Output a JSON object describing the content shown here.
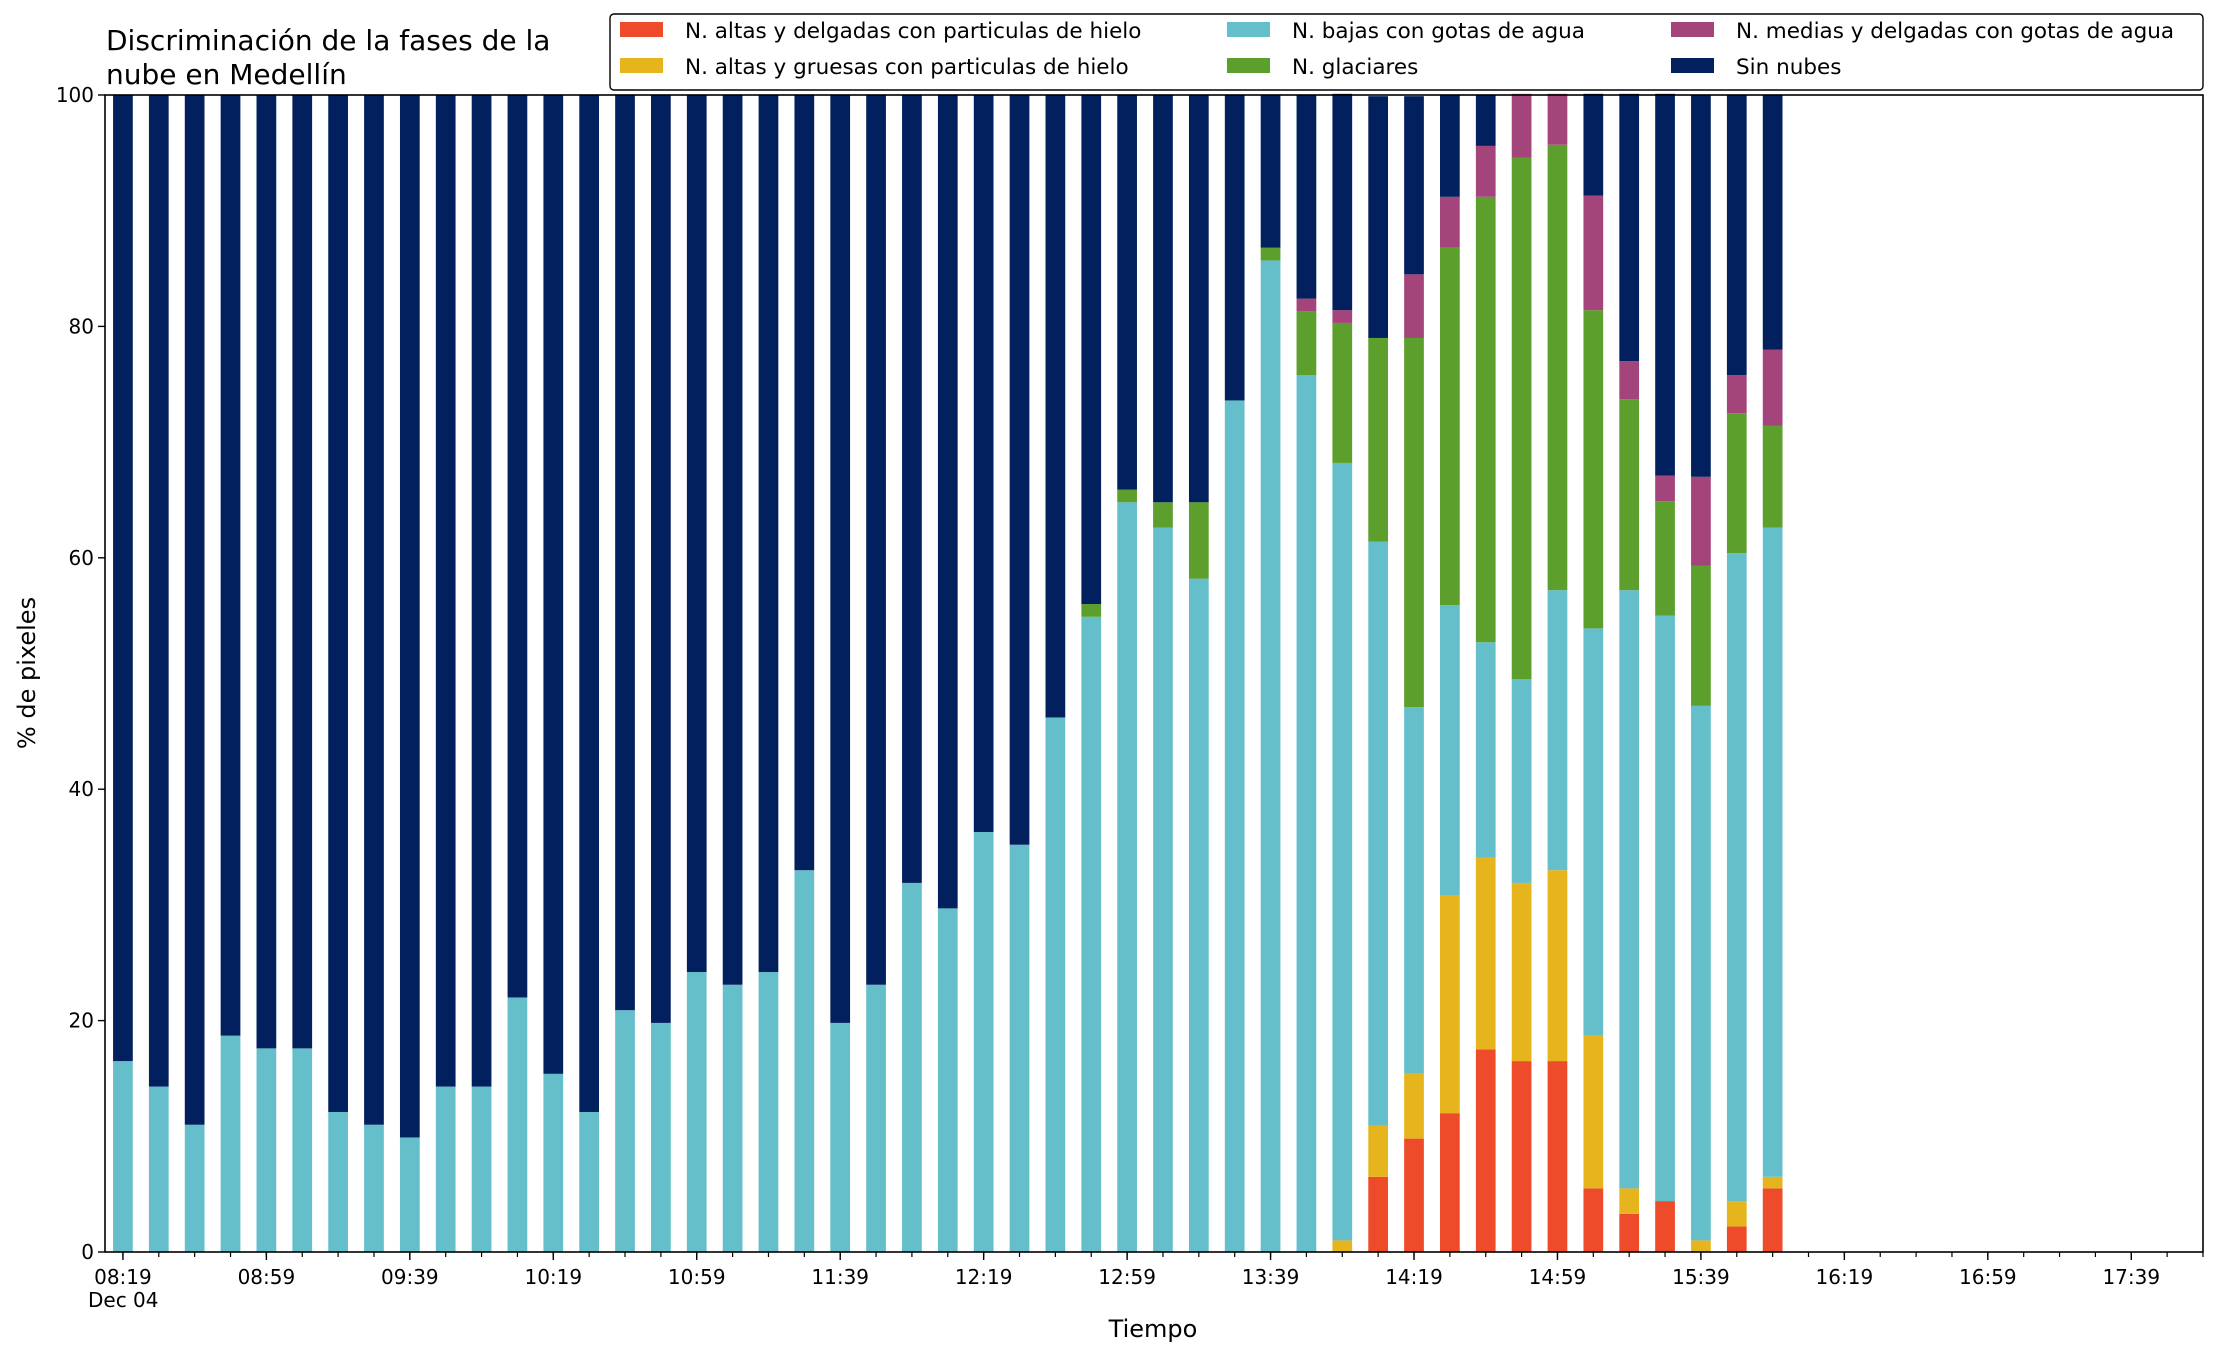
{
  "chart_data": {
    "type": "bar",
    "stacked": true,
    "title_lines": [
      "Discriminación de la fases de la",
      "nube en Medellín"
    ],
    "xlabel": "Tiempo",
    "ylabel": "% de pixeles",
    "ylim": [
      0,
      100
    ],
    "yticks": [
      0,
      20,
      40,
      60,
      80,
      100
    ],
    "xlim": [
      "08:14",
      "17:59"
    ],
    "bar_interval_minutes": 10,
    "x_major_tick_labels": [
      "08:19",
      "08:59",
      "09:39",
      "10:19",
      "10:59",
      "11:39",
      "12:19",
      "12:59",
      "13:39",
      "14:19",
      "14:59",
      "15:39",
      "16:19",
      "16:59",
      "17:39"
    ],
    "x_date_label": "Dec 04",
    "grid": false,
    "legend_position": "top-right",
    "times": [
      "08:19",
      "08:29",
      "08:39",
      "08:49",
      "08:59",
      "09:09",
      "09:19",
      "09:29",
      "09:39",
      "09:49",
      "09:59",
      "10:09",
      "10:19",
      "10:29",
      "10:39",
      "10:49",
      "10:59",
      "11:09",
      "11:19",
      "11:29",
      "11:39",
      "11:49",
      "11:59",
      "12:09",
      "12:19",
      "12:29",
      "12:39",
      "12:49",
      "12:59",
      "13:09",
      "13:19",
      "13:29",
      "13:39",
      "13:49",
      "13:59",
      "14:09",
      "14:19",
      "14:29",
      "14:39",
      "14:49",
      "14:59",
      "15:09",
      "15:19",
      "15:29",
      "15:39",
      "15:49",
      "15:59"
    ],
    "series": [
      {
        "name": "N. altas y delgadas con particulas de hielo",
        "color": "#ee4b2b",
        "values": [
          0,
          0,
          0,
          0,
          0,
          0,
          0,
          0,
          0,
          0,
          0,
          0,
          0,
          0,
          0,
          0,
          0,
          0,
          0,
          0,
          0,
          0,
          0,
          0,
          0,
          0,
          0,
          0,
          0,
          0,
          0,
          0,
          0,
          0,
          0,
          6.5,
          9.8,
          12.0,
          17.5,
          16.5,
          16.5,
          5.5,
          3.3,
          4.4,
          0,
          2.2,
          5.5
        ]
      },
      {
        "name": "N. altas y gruesas con particulas de hielo",
        "color": "#e6b51d",
        "values": [
          0,
          0,
          0,
          0,
          0,
          0,
          0,
          0,
          0,
          0,
          0,
          0,
          0,
          0,
          0,
          0,
          0,
          0,
          0,
          0,
          0,
          0,
          0,
          0,
          0,
          0,
          0,
          0,
          0,
          0,
          0,
          0,
          0,
          0,
          1.0,
          4.4,
          5.6,
          18.8,
          16.6,
          15.4,
          16.5,
          13.2,
          2.2,
          0,
          1.0,
          2.2,
          1.0
        ]
      },
      {
        "name": "N. bajas con gotas de agua",
        "color": "#65bfcb",
        "values": [
          16.5,
          14.3,
          11.0,
          18.7,
          17.6,
          17.6,
          12.1,
          11.0,
          9.9,
          14.3,
          14.3,
          22.0,
          15.4,
          12.1,
          20.9,
          19.8,
          24.2,
          23.1,
          24.2,
          33.0,
          19.8,
          23.1,
          31.9,
          29.7,
          36.3,
          35.2,
          46.2,
          54.9,
          64.8,
          62.6,
          58.2,
          73.6,
          85.7,
          75.8,
          67.2,
          50.5,
          31.7,
          25.1,
          18.6,
          17.6,
          24.2,
          35.2,
          51.7,
          50.6,
          46.2,
          56.0,
          56.1
        ]
      },
      {
        "name": "N. glaciares",
        "color": "#5c9f2c",
        "values": [
          0,
          0,
          0,
          0,
          0,
          0,
          0,
          0,
          0,
          0,
          0,
          0,
          0,
          0,
          0,
          0,
          0,
          0,
          0,
          0,
          0,
          0,
          0,
          0,
          0,
          0,
          0,
          1.1,
          1.1,
          2.2,
          6.6,
          0,
          1.1,
          5.5,
          12.1,
          17.6,
          31.9,
          30.9,
          38.5,
          45.1,
          38.5,
          27.5,
          16.5,
          9.9,
          12.1,
          12.1,
          8.8
        ]
      },
      {
        "name": "N. medias y delgadas con gotas de agua",
        "color": "#a3447a",
        "values": [
          0,
          0,
          0,
          0,
          0,
          0,
          0,
          0,
          0,
          0,
          0,
          0,
          0,
          0,
          0,
          0,
          0,
          0,
          0,
          0,
          0,
          0,
          0,
          0,
          0,
          0,
          0,
          0,
          0,
          0,
          0,
          0,
          0,
          1.1,
          1.1,
          0,
          5.5,
          4.4,
          4.4,
          5.5,
          4.4,
          9.9,
          3.3,
          2.2,
          7.7,
          3.3,
          6.6
        ]
      },
      {
        "name": "Sin nubes",
        "color": "#03205e",
        "values": [
          83.5,
          85.7,
          89.0,
          81.3,
          82.4,
          82.4,
          87.9,
          89.0,
          90.1,
          85.7,
          85.7,
          78.0,
          84.6,
          87.9,
          79.1,
          80.2,
          75.8,
          76.9,
          75.8,
          67.0,
          80.2,
          76.9,
          68.1,
          70.3,
          63.7,
          64.8,
          53.8,
          44.0,
          34.1,
          35.2,
          35.2,
          26.4,
          13.2,
          17.6,
          18.7,
          20.9,
          15.4,
          8.8,
          4.4,
          0,
          0,
          8.8,
          23.1,
          33.0,
          33.0,
          24.2,
          22.0
        ]
      }
    ]
  }
}
